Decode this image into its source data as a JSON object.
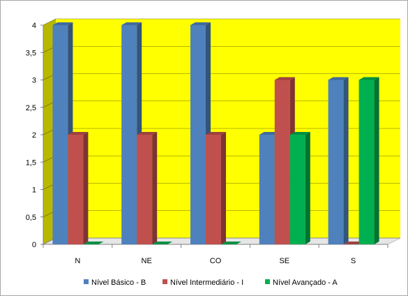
{
  "chart_data": {
    "type": "bar",
    "categories": [
      "N",
      "NE",
      "CO",
      "SE",
      "S"
    ],
    "series": [
      {
        "name": "Nível Básico - B",
        "values": [
          4,
          4,
          4,
          2,
          3
        ],
        "color": "#4f81bd"
      },
      {
        "name": "Nível Intermediário - I",
        "values": [
          2,
          2,
          2,
          3,
          0
        ],
        "color": "#c0504d"
      },
      {
        "name": "Nível Avançado - A",
        "values": [
          0,
          0,
          0,
          2,
          3
        ],
        "color": "#00b050"
      }
    ],
    "ylim": [
      0,
      4
    ],
    "yticks": [
      "0",
      "0,5",
      "1",
      "1,5",
      "2",
      "2,5",
      "3",
      "3,5",
      "4"
    ],
    "grid": true,
    "plot_background": "#ffff00",
    "legend_position": "bottom",
    "title": "",
    "xlabel": "",
    "ylabel": ""
  }
}
